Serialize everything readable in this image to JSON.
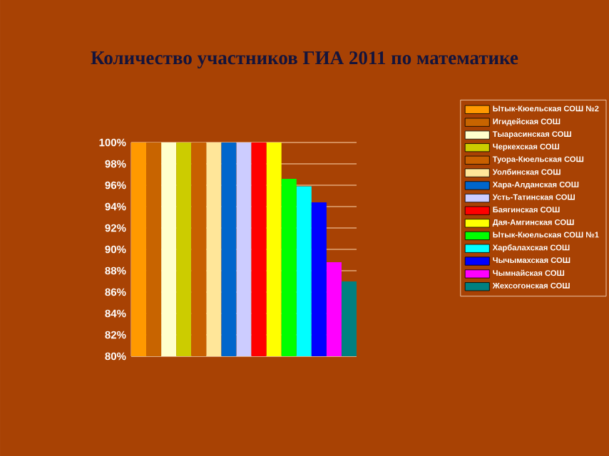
{
  "chart_data": {
    "type": "bar",
    "title": "Количество участников ГИА 2011 по математике",
    "categories": [
      null
    ],
    "series": [
      {
        "name": "Ытык-Кюельская СОШ №2",
        "color": "#ff9900",
        "values": [
          100
        ]
      },
      {
        "name": "Игидейская СОШ",
        "color": "#c86400",
        "values": [
          100
        ]
      },
      {
        "name": "Тыарасинская СОШ",
        "color": "#ffffcc",
        "values": [
          100
        ]
      },
      {
        "name": "Черкехская СОШ",
        "color": "#cccc00",
        "values": [
          100
        ]
      },
      {
        "name": "Туора-Кюельская СОШ",
        "color": "#c86000",
        "values": [
          100
        ]
      },
      {
        "name": "Уолбинская СОШ",
        "color": "#ffe699",
        "values": [
          100
        ]
      },
      {
        "name": "Хара-Алданская СОШ",
        "color": "#0066cc",
        "values": [
          100
        ]
      },
      {
        "name": "Усть-Татинская СОШ",
        "color": "#ccccff",
        "values": [
          100
        ]
      },
      {
        "name": "Баягинская СОШ",
        "color": "#ff0000",
        "values": [
          100
        ]
      },
      {
        "name": "Дая-Амгинская СОШ",
        "color": "#ffff00",
        "values": [
          100
        ]
      },
      {
        "name": "Ытык-Кюельская СОШ №1",
        "color": "#00ff00",
        "values": [
          96.6
        ]
      },
      {
        "name": "Харбалахская СОШ",
        "color": "#00ffff",
        "values": [
          95.9
        ]
      },
      {
        "name": "Чычымахская СОШ",
        "color": "#0000ff",
        "values": [
          94.4
        ]
      },
      {
        "name": "Чымнайская СОШ",
        "color": "#ff00ff",
        "values": [
          88.8
        ]
      },
      {
        "name": "Жехсогонская СОШ",
        "color": "#008080",
        "values": [
          87.0
        ]
      }
    ],
    "ylim": [
      80,
      100
    ],
    "yticks": [
      {
        "value": 80,
        "label": "80%"
      },
      {
        "value": 82,
        "label": "82%"
      },
      {
        "value": 84,
        "label": "84%"
      },
      {
        "value": 86,
        "label": "86%"
      },
      {
        "value": 88,
        "label": "88%"
      },
      {
        "value": 90,
        "label": "90%"
      },
      {
        "value": 92,
        "label": "92%"
      },
      {
        "value": 94,
        "label": "94%"
      },
      {
        "value": 96,
        "label": "96%"
      },
      {
        "value": 98,
        "label": "98%"
      },
      {
        "value": 100,
        "label": "100%"
      }
    ],
    "grid": "y",
    "legend": "right"
  }
}
